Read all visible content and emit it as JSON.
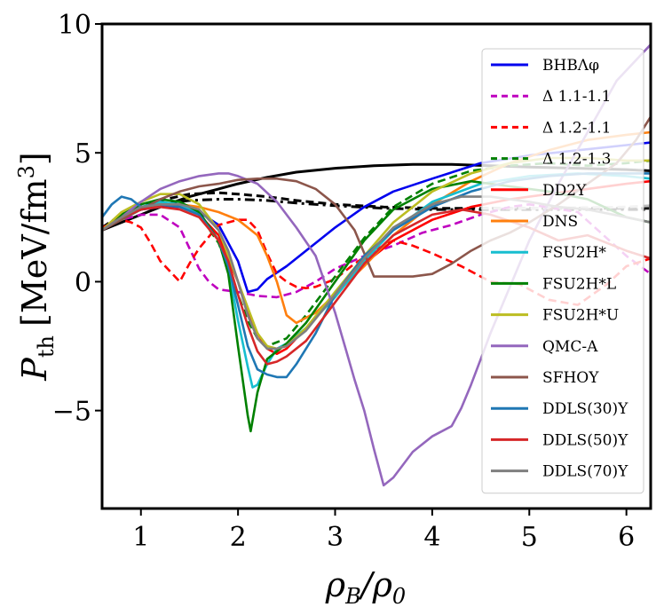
{
  "chart_data": {
    "type": "line",
    "title": "",
    "xlabel": "ρB/ρ0",
    "ylabel": "Pth [MeV/fm3]",
    "xlabel_parts": {
      "main": "ρ",
      "sub1": "B",
      "slash": "/ρ",
      "sub2": "0"
    },
    "ylabel_parts": {
      "main": "P",
      "sub": "th",
      "unit": "[MeV/fm",
      "sup": "3",
      "close": "]"
    },
    "xlim": [
      0.6,
      6.25
    ],
    "ylim": [
      -8.8,
      10.0
    ],
    "xticks": [
      1,
      2,
      3,
      4,
      5,
      6
    ],
    "xtick_labels": [
      "1",
      "2",
      "3",
      "4",
      "5",
      "6"
    ],
    "yticks": [
      -5,
      0,
      5,
      10
    ],
    "ytick_labels": [
      "−5",
      "0",
      "5",
      "10"
    ],
    "legend_position": "upper-right",
    "series": [
      {
        "name": "BHBΛφ",
        "color": "#0000ee",
        "style": "solid",
        "x": [
          0.6,
          0.8,
          1.0,
          1.2,
          1.4,
          1.6,
          1.8,
          2.0,
          2.1,
          2.2,
          2.3,
          2.5,
          2.8,
          3.0,
          3.3,
          3.6,
          4.0,
          4.5,
          5.0,
          5.5,
          6.0,
          6.25
        ],
        "y": [
          2.0,
          2.5,
          2.8,
          2.9,
          2.9,
          2.7,
          2.2,
          0.8,
          -0.4,
          -0.3,
          0.1,
          0.6,
          1.5,
          2.1,
          2.9,
          3.5,
          4.0,
          4.6,
          4.9,
          5.1,
          5.3,
          5.4
        ]
      },
      {
        "name": "Δ 1.1-1.1",
        "color": "#bf00bf",
        "style": "dashed",
        "x": [
          0.6,
          0.8,
          1.0,
          1.2,
          1.4,
          1.5,
          1.6,
          1.7,
          1.8,
          1.9,
          2.0,
          2.2,
          2.4,
          2.6,
          2.8,
          3.0,
          3.3,
          3.6,
          3.9,
          4.2,
          4.5,
          4.8,
          5.0,
          5.5,
          6.0,
          6.25
        ],
        "y": [
          2.1,
          2.4,
          2.6,
          2.6,
          2.1,
          1.3,
          0.5,
          0.0,
          -0.3,
          -0.35,
          -0.4,
          -0.55,
          -0.6,
          -0.4,
          0.0,
          0.5,
          1.0,
          1.4,
          1.9,
          2.2,
          2.6,
          2.9,
          3.0,
          2.7,
          1.0,
          0.3
        ]
      },
      {
        "name": "Δ 1.2-1.1",
        "color": "#ff0000",
        "style": "dashed",
        "x": [
          0.6,
          0.8,
          0.9,
          1.0,
          1.1,
          1.2,
          1.3,
          1.4,
          1.5,
          1.6,
          1.8,
          2.0,
          2.1,
          2.2,
          2.3,
          2.4,
          2.5,
          2.6,
          2.7,
          2.8,
          3.0,
          3.2,
          3.4,
          3.6,
          3.8,
          4.0,
          4.3,
          4.6,
          4.9,
          5.2,
          5.5,
          5.8,
          6.0,
          6.25
        ],
        "y": [
          2.1,
          2.4,
          2.3,
          2.1,
          1.5,
          0.8,
          0.4,
          0.0,
          0.7,
          1.3,
          2.2,
          2.4,
          2.4,
          2.0,
          1.1,
          0.3,
          0.0,
          -0.2,
          -0.25,
          -0.2,
          0.1,
          0.7,
          1.2,
          1.6,
          1.4,
          1.1,
          0.6,
          0.0,
          -0.1,
          -0.7,
          -0.9,
          -0.1,
          0.6,
          0.9
        ]
      },
      {
        "name": "Δ 1.2-1.3",
        "color": "#008000",
        "style": "dashed",
        "x": [
          0.6,
          0.8,
          1.0,
          1.2,
          1.4,
          1.6,
          1.8,
          2.0,
          2.1,
          2.2,
          2.3,
          2.5,
          2.7,
          3.0,
          3.3,
          3.6,
          4.0,
          4.4,
          4.8,
          5.2,
          5.6,
          6.0,
          6.25
        ],
        "y": [
          2.0,
          2.5,
          2.8,
          3.0,
          3.0,
          2.6,
          1.5,
          -0.5,
          -1.5,
          -2.2,
          -2.5,
          -2.2,
          -1.3,
          0.2,
          1.7,
          2.9,
          3.8,
          4.3,
          4.5,
          4.6,
          4.5,
          4.6,
          4.7
        ]
      },
      {
        "name": "DD2Y",
        "color": "#ff0000",
        "style": "solid",
        "x": [
          0.6,
          0.8,
          1.0,
          1.2,
          1.4,
          1.6,
          1.8,
          2.0,
          2.1,
          2.2,
          2.3,
          2.4,
          2.5,
          2.7,
          3.0,
          3.3,
          3.6,
          4.0,
          4.4,
          4.8,
          5.2,
          5.6,
          6.0,
          6.25
        ],
        "y": [
          2.0,
          2.5,
          2.8,
          3.0,
          2.9,
          2.6,
          1.8,
          0.0,
          -1.2,
          -2.0,
          -2.6,
          -2.8,
          -2.6,
          -1.8,
          -0.5,
          0.7,
          1.6,
          2.4,
          2.9,
          3.2,
          3.4,
          3.6,
          3.8,
          3.9
        ]
      },
      {
        "name": "DNS",
        "color": "#ff7f0e",
        "style": "solid",
        "x": [
          0.6,
          0.8,
          1.0,
          1.2,
          1.4,
          1.6,
          1.8,
          2.0,
          2.1,
          2.2,
          2.3,
          2.4,
          2.5,
          2.6,
          2.8,
          3.0,
          3.3,
          3.6,
          4.0,
          4.4,
          4.8,
          5.2,
          5.6,
          6.0,
          6.25
        ],
        "y": [
          2.0,
          2.6,
          2.9,
          3.0,
          3.0,
          2.9,
          2.7,
          2.4,
          2.1,
          1.8,
          1.0,
          0.0,
          -1.3,
          -1.6,
          -1.2,
          -0.5,
          0.6,
          1.8,
          3.0,
          3.9,
          4.6,
          5.1,
          5.5,
          5.7,
          5.8
        ]
      },
      {
        "name": "FSU2H*",
        "color": "#17becf",
        "style": "solid",
        "x": [
          0.6,
          0.8,
          1.0,
          1.2,
          1.4,
          1.6,
          1.8,
          1.9,
          2.0,
          2.1,
          2.15,
          2.2,
          2.3,
          2.4,
          2.5,
          2.7,
          3.0,
          3.3,
          3.6,
          4.0,
          4.5,
          5.0,
          5.5,
          6.0,
          6.25
        ],
        "y": [
          2.0,
          2.5,
          2.9,
          3.1,
          3.0,
          2.6,
          1.6,
          0.5,
          -1.5,
          -3.3,
          -4.1,
          -4.0,
          -3.2,
          -2.6,
          -2.4,
          -1.8,
          -0.6,
          0.8,
          2.0,
          3.1,
          3.8,
          4.1,
          4.2,
          4.1,
          4.0
        ]
      },
      {
        "name": "FSU2H*L",
        "color": "#008000",
        "style": "solid",
        "x": [
          0.6,
          0.8,
          1.0,
          1.2,
          1.4,
          1.6,
          1.8,
          1.9,
          2.0,
          2.1,
          2.13,
          2.2,
          2.3,
          2.4,
          2.5,
          2.7,
          3.0,
          3.3,
          3.6,
          4.0,
          4.4,
          4.8,
          5.2,
          5.6,
          6.0,
          6.25
        ],
        "y": [
          2.0,
          2.6,
          3.0,
          3.2,
          3.1,
          2.7,
          1.6,
          0.3,
          -2.5,
          -5.2,
          -5.8,
          -4.3,
          -3.0,
          -2.7,
          -2.4,
          -1.6,
          0.0,
          1.6,
          2.8,
          3.6,
          3.9,
          3.7,
          3.5,
          3.2,
          2.5,
          2.3
        ]
      },
      {
        "name": "FSU2H*U",
        "color": "#bcbd22",
        "style": "solid",
        "x": [
          0.6,
          0.8,
          1.0,
          1.2,
          1.4,
          1.6,
          1.8,
          2.0,
          2.2,
          2.3,
          2.4,
          2.5,
          2.7,
          3.0,
          3.3,
          3.6,
          4.0,
          4.4,
          4.8,
          5.2,
          5.6,
          6.0,
          6.25
        ],
        "y": [
          2.0,
          2.7,
          3.1,
          3.4,
          3.4,
          3.0,
          2.0,
          0.0,
          -2.0,
          -2.5,
          -2.6,
          -2.5,
          -1.8,
          -0.4,
          1.0,
          2.3,
          3.5,
          4.2,
          4.6,
          4.8,
          4.8,
          4.7,
          4.7
        ]
      },
      {
        "name": "QMC-A",
        "color": "#9467bd",
        "style": "solid",
        "x": [
          0.6,
          0.8,
          1.0,
          1.2,
          1.4,
          1.6,
          1.8,
          1.9,
          2.0,
          2.2,
          2.4,
          2.6,
          2.8,
          3.0,
          3.1,
          3.2,
          3.3,
          3.4,
          3.5,
          3.6,
          3.7,
          3.8,
          4.0,
          4.2,
          4.3,
          4.4,
          4.5,
          4.6,
          4.8,
          5.0,
          5.3,
          5.6,
          5.9,
          6.25
        ],
        "y": [
          2.0,
          2.5,
          3.1,
          3.6,
          3.9,
          4.1,
          4.2,
          4.2,
          4.1,
          3.8,
          3.1,
          2.1,
          1.0,
          -1.2,
          -2.5,
          -3.8,
          -5.0,
          -6.5,
          -7.9,
          -7.6,
          -7.1,
          -6.6,
          -6.0,
          -5.6,
          -4.9,
          -4.0,
          -3.0,
          -2.0,
          -0.2,
          1.6,
          3.8,
          5.8,
          7.8,
          9.2
        ]
      },
      {
        "name": "SFHOY",
        "color": "#8c564b",
        "style": "solid",
        "x": [
          0.6,
          0.8,
          1.0,
          1.2,
          1.4,
          1.6,
          1.8,
          2.0,
          2.2,
          2.4,
          2.6,
          2.8,
          3.0,
          3.2,
          3.4,
          3.6,
          3.8,
          4.0,
          4.2,
          4.4,
          4.6,
          4.8,
          5.0,
          5.3,
          5.6,
          5.9,
          6.1,
          6.25
        ],
        "y": [
          2.0,
          2.4,
          2.8,
          3.2,
          3.5,
          3.7,
          3.8,
          3.95,
          4.0,
          4.0,
          3.9,
          3.6,
          3.0,
          2.0,
          0.2,
          0.2,
          0.2,
          0.3,
          0.7,
          1.2,
          1.6,
          1.9,
          2.3,
          3.0,
          3.8,
          4.6,
          5.5,
          6.4
        ]
      },
      {
        "name": "DDLS(30)Y",
        "color": "#1f77b4",
        "style": "solid",
        "x": [
          0.6,
          0.7,
          0.8,
          0.9,
          1.0,
          1.2,
          1.4,
          1.6,
          1.8,
          1.9,
          2.0,
          2.1,
          2.2,
          2.3,
          2.4,
          2.5,
          2.6,
          2.8,
          3.0,
          3.3,
          3.6,
          4.0,
          4.4,
          4.8,
          5.2,
          5.6,
          6.0,
          6.25
        ],
        "y": [
          2.5,
          3.0,
          3.3,
          3.2,
          2.9,
          3.0,
          2.9,
          2.6,
          1.6,
          0.6,
          -0.9,
          -2.5,
          -3.4,
          -3.6,
          -3.7,
          -3.7,
          -3.2,
          -2.0,
          -0.5,
          1.0,
          2.0,
          2.9,
          3.5,
          3.9,
          4.1,
          4.2,
          4.2,
          4.2
        ]
      },
      {
        "name": "DDLS(50)Y",
        "color": "#d62728",
        "style": "solid",
        "x": [
          0.6,
          0.8,
          1.0,
          1.2,
          1.4,
          1.6,
          1.8,
          1.9,
          2.0,
          2.1,
          2.2,
          2.3,
          2.4,
          2.5,
          2.7,
          3.0,
          3.3,
          3.6,
          4.0,
          4.3,
          4.6,
          5.0,
          5.3,
          5.6,
          6.0,
          6.25
        ],
        "y": [
          2.0,
          2.5,
          2.8,
          2.9,
          2.8,
          2.5,
          1.6,
          0.8,
          -0.5,
          -1.7,
          -2.7,
          -3.2,
          -3.1,
          -2.9,
          -2.3,
          -0.8,
          0.7,
          1.8,
          2.6,
          2.8,
          2.6,
          2.1,
          1.6,
          1.8,
          1.2,
          0.9
        ]
      },
      {
        "name": "DDLS(70)Y",
        "color": "#7f7f7f",
        "style": "solid",
        "x": [
          0.6,
          0.8,
          1.0,
          1.2,
          1.4,
          1.6,
          1.8,
          1.9,
          2.0,
          2.1,
          2.2,
          2.3,
          2.4,
          2.5,
          2.7,
          3.0,
          3.3,
          3.6,
          4.0,
          4.3,
          4.6,
          5.0,
          5.3,
          5.6,
          6.0,
          6.25
        ],
        "y": [
          2.0,
          2.5,
          2.9,
          3.0,
          3.0,
          2.8,
          2.0,
          1.2,
          0.0,
          -1.3,
          -2.2,
          -2.6,
          -2.6,
          -2.5,
          -1.9,
          -0.5,
          0.9,
          2.1,
          3.0,
          3.3,
          3.3,
          3.1,
          2.9,
          2.8,
          2.5,
          2.3
        ]
      }
    ],
    "reference_curves": [
      {
        "style": "solid",
        "color": "#000000",
        "x": [
          0.6,
          0.8,
          1.0,
          1.2,
          1.5,
          1.8,
          2.0,
          2.3,
          2.6,
          3.0,
          3.4,
          3.8,
          4.2,
          4.6,
          5.0,
          5.5,
          6.0,
          6.25
        ],
        "y": [
          2.0,
          2.3,
          2.6,
          2.9,
          3.3,
          3.6,
          3.8,
          4.05,
          4.25,
          4.4,
          4.5,
          4.55,
          4.55,
          4.5,
          4.45,
          4.4,
          4.35,
          4.3
        ]
      },
      {
        "style": "dashed",
        "color": "#000000",
        "x": [
          0.6,
          0.8,
          1.0,
          1.2,
          1.5,
          1.8,
          2.0,
          2.3,
          2.6,
          3.0,
          3.5,
          4.0,
          4.5,
          5.0,
          5.5,
          6.0,
          6.25
        ],
        "y": [
          2.1,
          2.6,
          2.9,
          3.15,
          3.4,
          3.45,
          3.4,
          3.3,
          3.15,
          3.0,
          2.9,
          2.85,
          2.85,
          2.85,
          2.85,
          2.85,
          2.85
        ]
      },
      {
        "style": "dashdot",
        "color": "#000000",
        "x": [
          0.6,
          0.8,
          1.0,
          1.2,
          1.5,
          1.8,
          2.0,
          2.3,
          2.6,
          3.0,
          3.5,
          4.0,
          4.5,
          5.0,
          5.5,
          6.0,
          6.25
        ],
        "y": [
          2.0,
          2.5,
          2.8,
          3.0,
          3.15,
          3.2,
          3.2,
          3.15,
          3.05,
          2.95,
          2.85,
          2.8,
          2.8,
          2.8,
          2.8,
          2.8,
          2.8
        ]
      },
      {
        "style": "dashed",
        "color": "#bbbbbb",
        "x": [
          4.5,
          5.0,
          5.5,
          6.0,
          6.25
        ],
        "y": [
          2.85,
          2.85,
          2.87,
          2.9,
          2.95
        ]
      }
    ]
  }
}
